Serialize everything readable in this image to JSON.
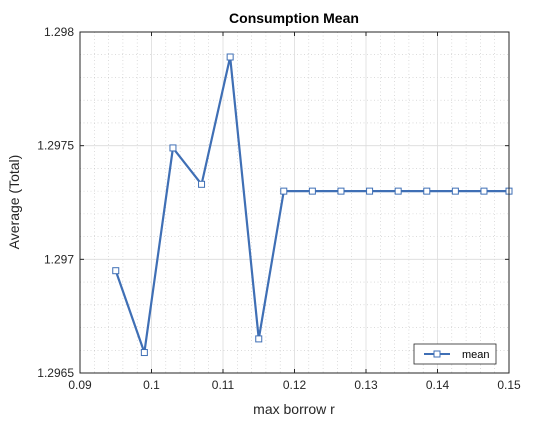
{
  "chart_data": {
    "type": "line",
    "title": "Consumption Mean",
    "xlabel": "max borrow r",
    "ylabel": "Average (Total)",
    "xlim": [
      0.09,
      0.15
    ],
    "ylim": [
      1.2965,
      1.298
    ],
    "xticks": [
      0.09,
      0.1,
      0.11,
      0.12,
      0.13,
      0.14,
      0.15
    ],
    "xtick_labels": [
      "0.09",
      "0.1",
      "0.11",
      "0.12",
      "0.13",
      "0.14",
      "0.15"
    ],
    "yticks": [
      1.2965,
      1.297,
      1.2975,
      1.298
    ],
    "ytick_labels": [
      "1.2965",
      "1.297",
      "1.2975",
      "1.298"
    ],
    "grid": true,
    "minor_grid": true,
    "legend_position": "bottom-right",
    "series": [
      {
        "name": "mean",
        "marker": "square",
        "color": "#3F6FB5",
        "x": [
          0.095,
          0.099,
          0.103,
          0.107,
          0.111,
          0.115,
          0.1185,
          0.1225,
          0.1265,
          0.1305,
          0.1345,
          0.1385,
          0.1425,
          0.1465,
          0.15
        ],
        "y": [
          1.29695,
          1.29659,
          1.29749,
          1.29733,
          1.29789,
          1.29665,
          1.2973,
          1.2973,
          1.2973,
          1.2973,
          1.2973,
          1.2973,
          1.2973,
          1.2973,
          1.2973
        ]
      }
    ]
  }
}
